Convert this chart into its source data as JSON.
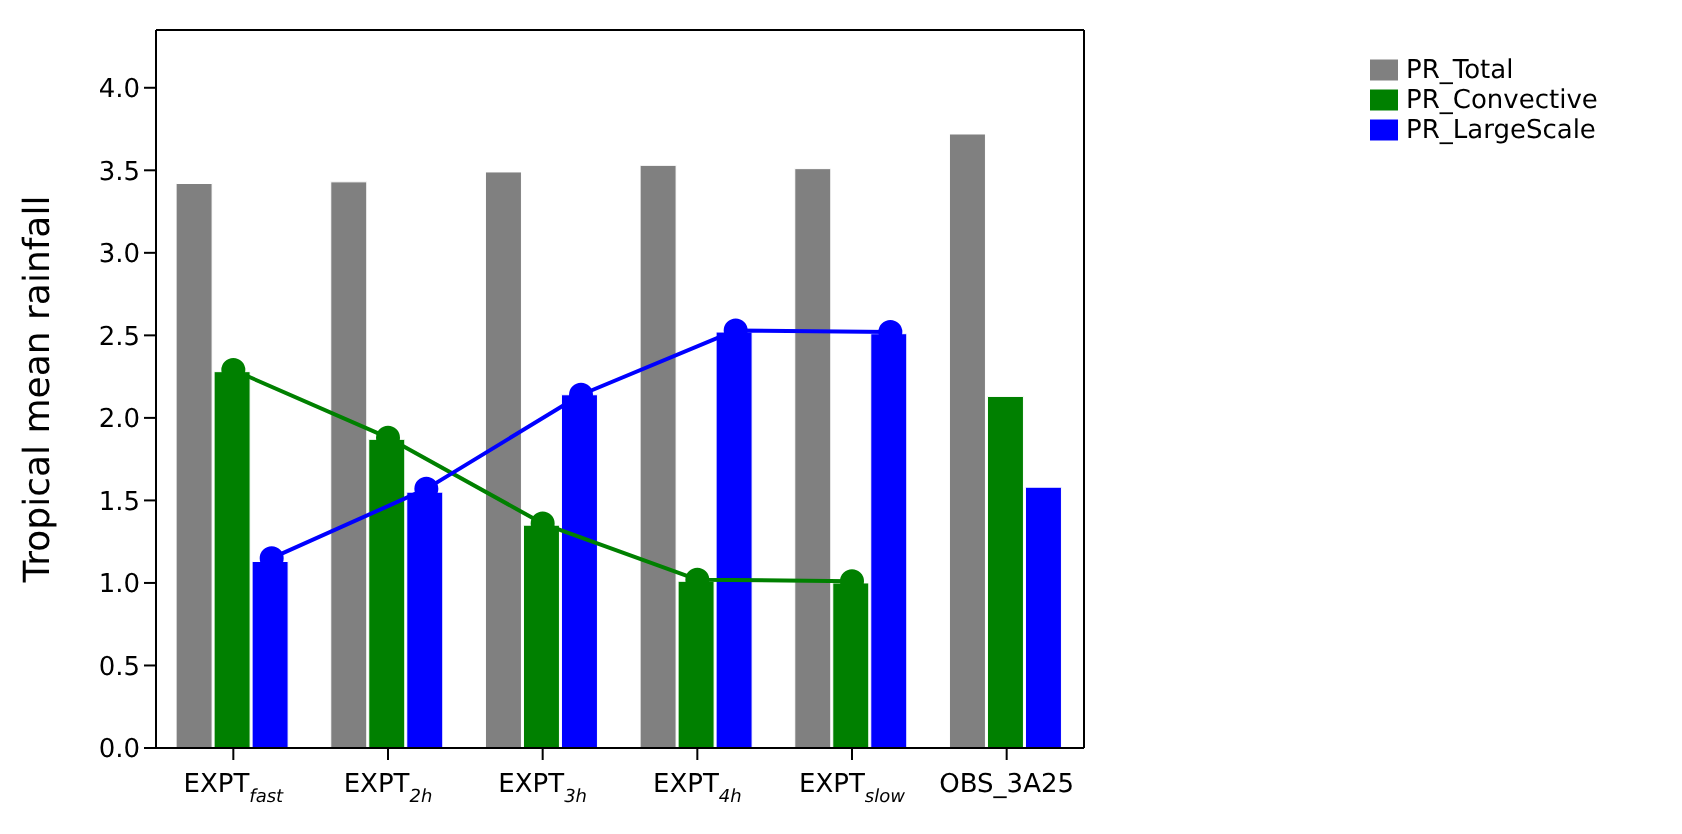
{
  "chart_data": {
    "type": "bar",
    "ylabel": "Tropical mean rainfall",
    "categories": [
      "EXPT$_{fast}$",
      "EXPT$_{2h}$",
      "EXPT$_{3h}$",
      "EXPT$_{4h}$",
      "EXPT$_{slow}$",
      "OBS_3A25"
    ],
    "series": [
      {
        "name": "PR_Total",
        "color": "#808080",
        "values": [
          3.42,
          3.43,
          3.49,
          3.53,
          3.51,
          3.72
        ]
      },
      {
        "name": "PR_Convective",
        "color": "#008000",
        "values": [
          2.28,
          1.87,
          1.35,
          1.01,
          1.0,
          2.13
        ]
      },
      {
        "name": "PR_LargeScale",
        "color": "#0000ff",
        "values": [
          1.13,
          1.55,
          2.14,
          2.52,
          2.51,
          1.58
        ]
      },
      {
        "type": "line",
        "color": "#008000",
        "x": [
          "EXPT$_{fast}$",
          "EXPT$_{2h}$",
          "EXPT$_{3h}$",
          "EXPT$_{4h}$",
          "EXPT$_{slow}$"
        ],
        "values": [
          2.29,
          1.88,
          1.36,
          1.02,
          1.01
        ],
        "marker": "circle"
      },
      {
        "type": "line",
        "color": "#0000ff",
        "x": [
          "EXPT$_{fast}$",
          "EXPT$_{2h}$",
          "EXPT$_{3h}$",
          "EXPT$_{4h}$",
          "EXPT$_{slow}$"
        ],
        "values": [
          1.15,
          1.57,
          2.14,
          2.53,
          2.52
        ],
        "marker": "circle"
      }
    ],
    "ylim": [
      0,
      4.35
    ],
    "yticks": [
      {
        "value": 0,
        "label": "0.0"
      },
      0.5,
      {
        "value": 1,
        "label": "1.0"
      },
      1.5,
      {
        "value": 2,
        "label": "2.0"
      },
      2.5,
      {
        "value": 3,
        "label": "3.0"
      },
      3.5,
      {
        "value": 4,
        "label": "4.0"
      }
    ],
    "legend": "top right"
  }
}
